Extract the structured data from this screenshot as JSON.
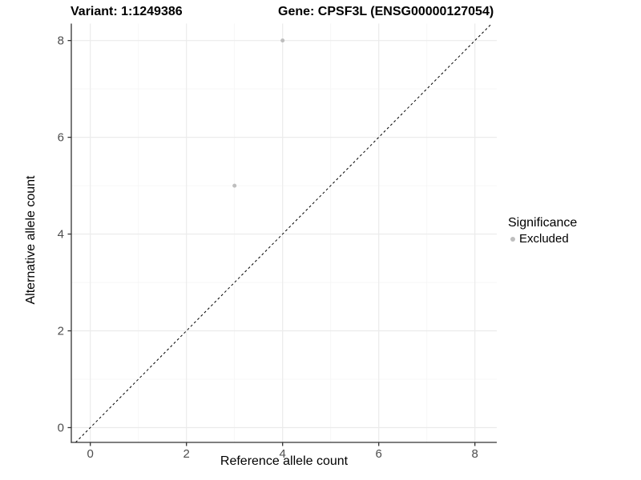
{
  "chart_data": {
    "type": "scatter",
    "title_left": "Variant: 1:1249386",
    "title_right": "Gene: CPSF3L (ENSG00000127054)",
    "xlabel": "Reference allele count",
    "ylabel": "Alternative allele count",
    "xlim": [
      -0.395,
      8.455
    ],
    "ylim": [
      -0.306,
      8.35
    ],
    "x_ticks": [
      0,
      2,
      4,
      6,
      8
    ],
    "y_ticks": [
      0,
      2,
      4,
      6,
      8
    ],
    "x_minor_ticks": [
      1,
      3,
      5,
      7
    ],
    "y_minor_ticks": [
      1,
      3,
      5,
      7
    ],
    "grid": "major and minor, light grey on white panel",
    "series": [
      {
        "name": "Excluded",
        "color": "#bebebe",
        "points": [
          [
            3,
            5
          ],
          [
            4,
            8
          ]
        ]
      }
    ],
    "reference_line": {
      "type": "identity",
      "slope": 1,
      "intercept": 0,
      "style": "dashed",
      "color": "#000000"
    },
    "legend": {
      "title": "Significance",
      "position": "right",
      "items": [
        {
          "label": "Excluded",
          "color": "#bebebe"
        }
      ]
    },
    "colors": {
      "background": "#ffffff",
      "grid_major": "#ebebeb",
      "grid_minor": "#f5f5f5",
      "axis_line": "#333333",
      "tick_label": "#4d4d4d",
      "text": "#000000"
    }
  }
}
